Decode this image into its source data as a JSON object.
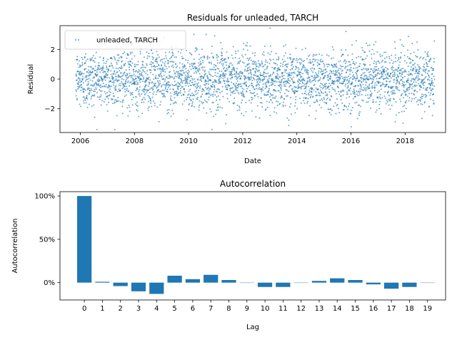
{
  "chart_data": [
    {
      "type": "scatter",
      "title": "Residuals for unleaded, TARCH",
      "xlabel": "Date",
      "ylabel": "Residual",
      "x_range": [
        "2005-04-01",
        "2019-07-01"
      ],
      "ylim": [
        -3.6,
        3.6
      ],
      "x_ticks": [
        "2006",
        "2008",
        "2010",
        "2012",
        "2014",
        "2016",
        "2018"
      ],
      "y_ticks": [
        -2,
        0,
        2
      ],
      "y_tick_labels": [
        "−2",
        "0",
        "2"
      ],
      "series": [
        {
          "name": "unleaded, TARCH",
          "x_start": "2005-11-01",
          "x_end": "2019-02-01",
          "description_values": "dense daily residual points roughly normally distributed around 0, range about -3.4 to 3.5",
          "color": "#1f77b4"
        }
      ],
      "legend": "upper-left",
      "grid": false
    },
    {
      "type": "bar",
      "title": "Autocorrelation",
      "xlabel": "Lag",
      "ylabel": "Autocorrelation",
      "categories": [
        "0",
        "1",
        "2",
        "3",
        "4",
        "5",
        "6",
        "7",
        "8",
        "9",
        "10",
        "11",
        "12",
        "13",
        "14",
        "15",
        "16",
        "17",
        "18",
        "19"
      ],
      "values": [
        1.0,
        0.01,
        -0.04,
        -0.1,
        -0.13,
        0.08,
        0.04,
        0.09,
        0.03,
        0.0,
        -0.05,
        -0.05,
        0.0,
        0.02,
        0.05,
        0.03,
        -0.02,
        -0.07,
        -0.05,
        0.0
      ],
      "ylim": [
        -0.2,
        1.05
      ],
      "y_ticks": [
        0,
        0.5,
        1.0
      ],
      "y_tick_labels": [
        "0%",
        "50%",
        "100%"
      ],
      "color": "#1f77b4",
      "grid": false
    }
  ]
}
